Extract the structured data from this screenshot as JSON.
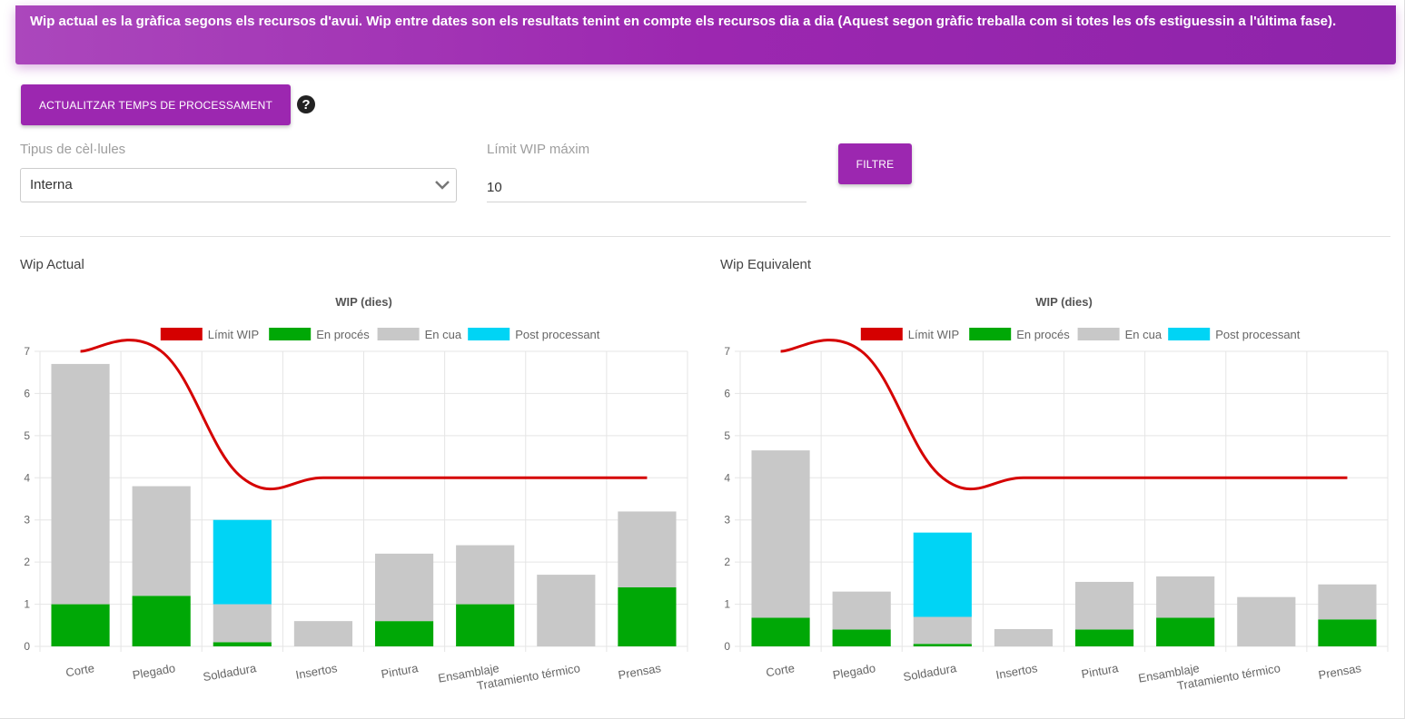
{
  "banner": {
    "text": "Wip actual es la gràfica segons els recursos d'avui. Wip entre dates son els resultats tenint en compte els recursos dia a dia (Aquest segon gràfic treballa com si totes les ofs estiguessin a l'última fase)."
  },
  "actions": {
    "update_label": "ACTUALITZAR TEMPS DE PROCESSAMENT",
    "filter_label": "FILTRE",
    "help_icon": "question-circle-icon"
  },
  "filters": {
    "cell_type_label": "Tipus de cèl·lules",
    "cell_type_value": "Interna",
    "wip_limit_label": "Límit WIP máxim",
    "wip_limit_value": "10"
  },
  "colors": {
    "accent": "#9c27b0",
    "limit_line": "#d50000",
    "in_process": "#00a806",
    "queue": "#c8c8c8",
    "post_processing": "#00d4f5"
  },
  "chart_headings": [
    "Wip Actual",
    "Wip Equivalent"
  ],
  "chart_data": [
    {
      "type": "bar",
      "stacked": true,
      "title": "WIP (dies)",
      "categories": [
        "Corte",
        "Plegado",
        "Soldadura",
        "Insertos",
        "Pintura",
        "Ensamblaje",
        "Tratamiento térmico",
        "Prensas"
      ],
      "ylim": [
        0,
        7
      ],
      "yticks": [
        0,
        1,
        2,
        3,
        4,
        5,
        6,
        7
      ],
      "grid": true,
      "legend": "top",
      "series": [
        {
          "name": "Límit WIP",
          "kind": "line",
          "color": "#d50000",
          "values": [
            7,
            7,
            4,
            4,
            4,
            4,
            4,
            4
          ]
        },
        {
          "name": "En procés",
          "kind": "bar",
          "color": "#00a806",
          "values": [
            1.0,
            1.2,
            0.1,
            0,
            0.6,
            1.0,
            0,
            1.4
          ]
        },
        {
          "name": "En cua",
          "kind": "bar",
          "color": "#c8c8c8",
          "values": [
            5.7,
            2.6,
            0.9,
            0.6,
            1.6,
            1.4,
            1.7,
            1.8
          ]
        },
        {
          "name": "Post processant",
          "kind": "bar",
          "color": "#00d4f5",
          "values": [
            0,
            0,
            2.0,
            0,
            0,
            0,
            0,
            0
          ]
        }
      ]
    },
    {
      "type": "bar",
      "stacked": true,
      "title": "WIP (dies)",
      "categories": [
        "Corte",
        "Plegado",
        "Soldadura",
        "Insertos",
        "Pintura",
        "Ensamblaje",
        "Tratamiento térmico",
        "Prensas"
      ],
      "ylim": [
        0,
        7
      ],
      "yticks": [
        0,
        1,
        2,
        3,
        4,
        5,
        6,
        7
      ],
      "grid": true,
      "legend": "top",
      "series": [
        {
          "name": "Límit WIP",
          "kind": "line",
          "color": "#d50000",
          "values": [
            7,
            7,
            4,
            4,
            4,
            4,
            4,
            4
          ]
        },
        {
          "name": "En procés",
          "kind": "bar",
          "color": "#00a806",
          "values": [
            0.68,
            0.4,
            0.06,
            0,
            0.4,
            0.68,
            0,
            0.64
          ]
        },
        {
          "name": "En cua",
          "kind": "bar",
          "color": "#c8c8c8",
          "values": [
            3.97,
            0.9,
            0.64,
            0.41,
            1.13,
            0.98,
            1.17,
            0.83
          ]
        },
        {
          "name": "Post processant",
          "kind": "bar",
          "color": "#00d4f5",
          "values": [
            0,
            0,
            2.0,
            0,
            0,
            0,
            0,
            0
          ]
        }
      ]
    }
  ]
}
